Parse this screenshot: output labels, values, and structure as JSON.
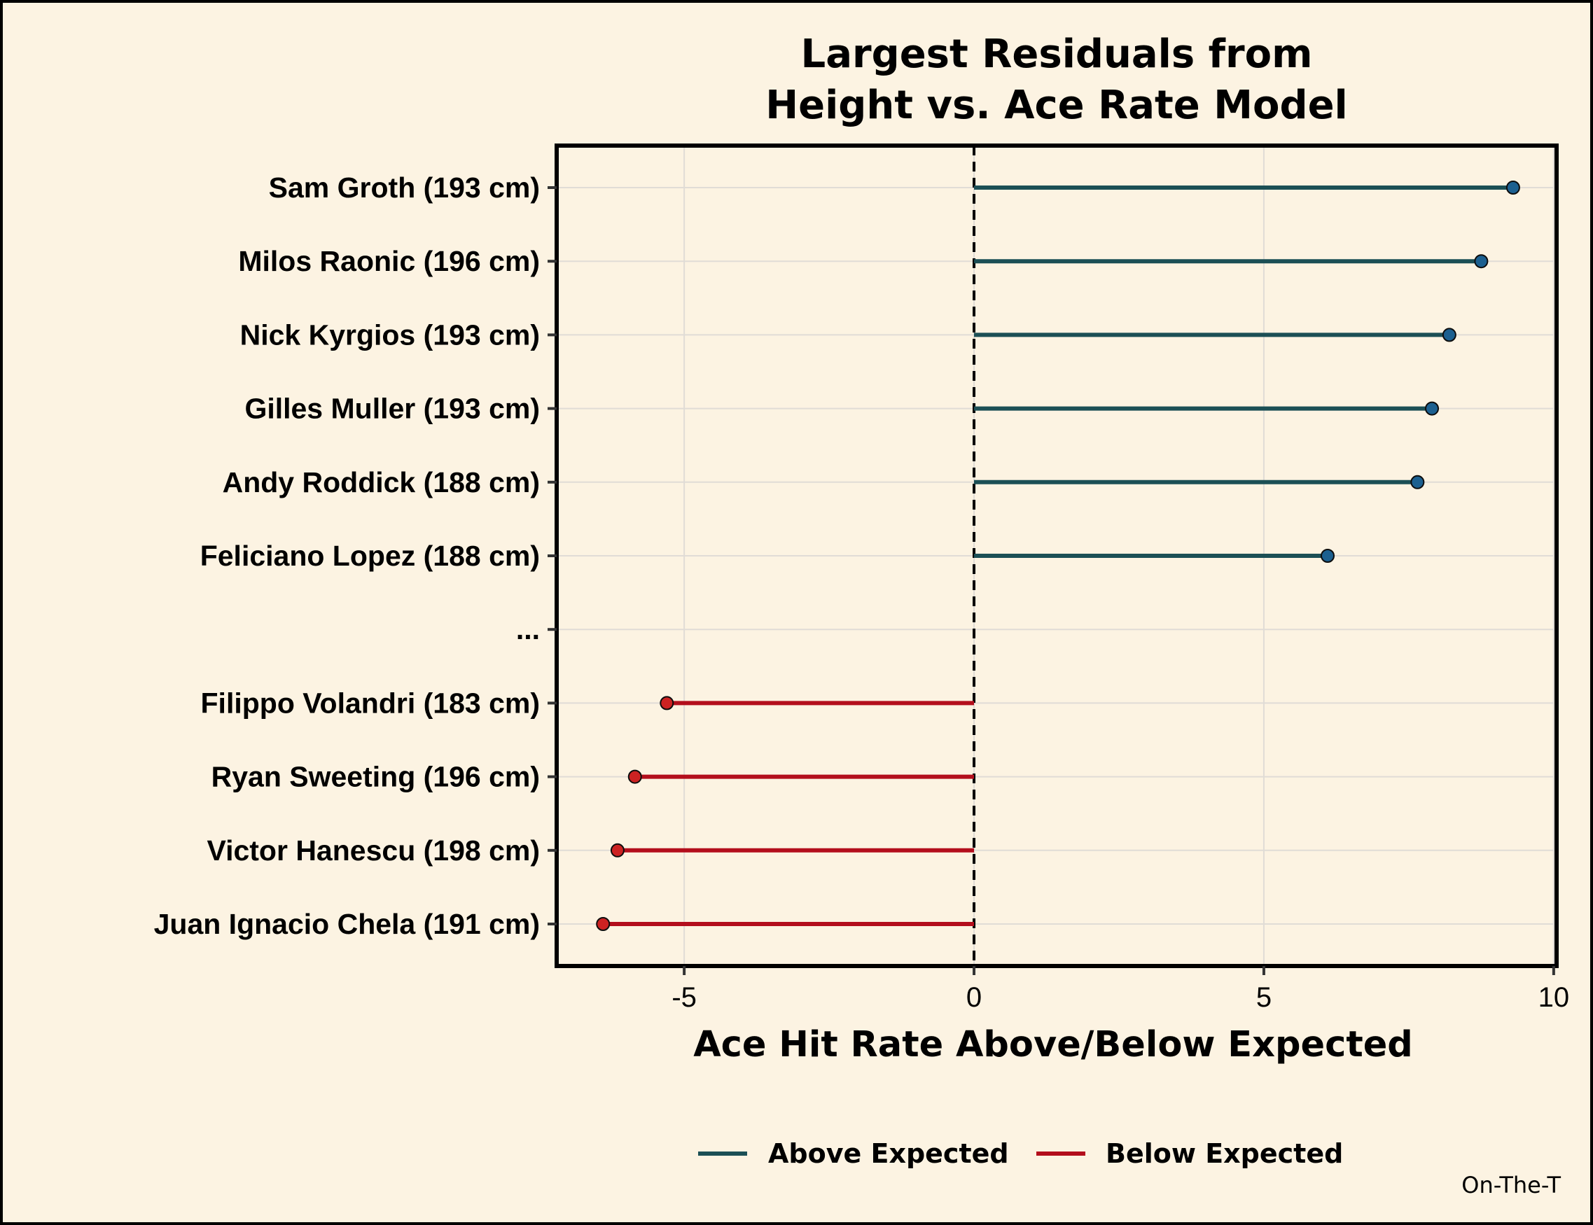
{
  "chart_data": {
    "type": "lollipop",
    "title": [
      "Largest Residuals from",
      "Height vs. Ace Rate Model"
    ],
    "xlabel": "Ace Hit Rate Above/Below Expected",
    "ylabel": "",
    "xlim": [
      -7.2,
      10.05
    ],
    "xticks": [
      -5,
      0,
      5,
      10
    ],
    "xtick_labels": [
      "-5",
      "0",
      "5",
      "10"
    ],
    "reference_line": {
      "x": 0,
      "style": "dashed"
    },
    "categories": [
      "Sam Groth (193 cm)",
      "Milos Raonic (196 cm)",
      "Nick Kyrgios (193 cm)",
      "Gilles Muller (193 cm)",
      "Andy Roddick (188 cm)",
      "Feliciano Lopez (188 cm)",
      "...",
      "Filippo Volandri (183 cm)",
      "Ryan Sweeting (196 cm)",
      "Victor Hanescu (198 cm)",
      "Juan Ignacio Chela (191 cm)"
    ],
    "values": [
      9.3,
      8.75,
      8.2,
      7.9,
      7.65,
      6.1,
      null,
      -5.3,
      -5.85,
      -6.15,
      -6.4
    ],
    "groups": [
      "Above Expected",
      "Above Expected",
      "Above Expected",
      "Above Expected",
      "Above Expected",
      "Above Expected",
      null,
      "Below Expected",
      "Below Expected",
      "Below Expected",
      "Below Expected"
    ],
    "series": [
      {
        "name": "Above Expected",
        "line_color": "#1b4f55",
        "point_color": "#1c6090"
      },
      {
        "name": "Below Expected",
        "line_color": "#b30e1c",
        "point_color": "#cc2222"
      }
    ],
    "legend_position": "bottom",
    "grid": true,
    "caption": "On-The-T"
  }
}
